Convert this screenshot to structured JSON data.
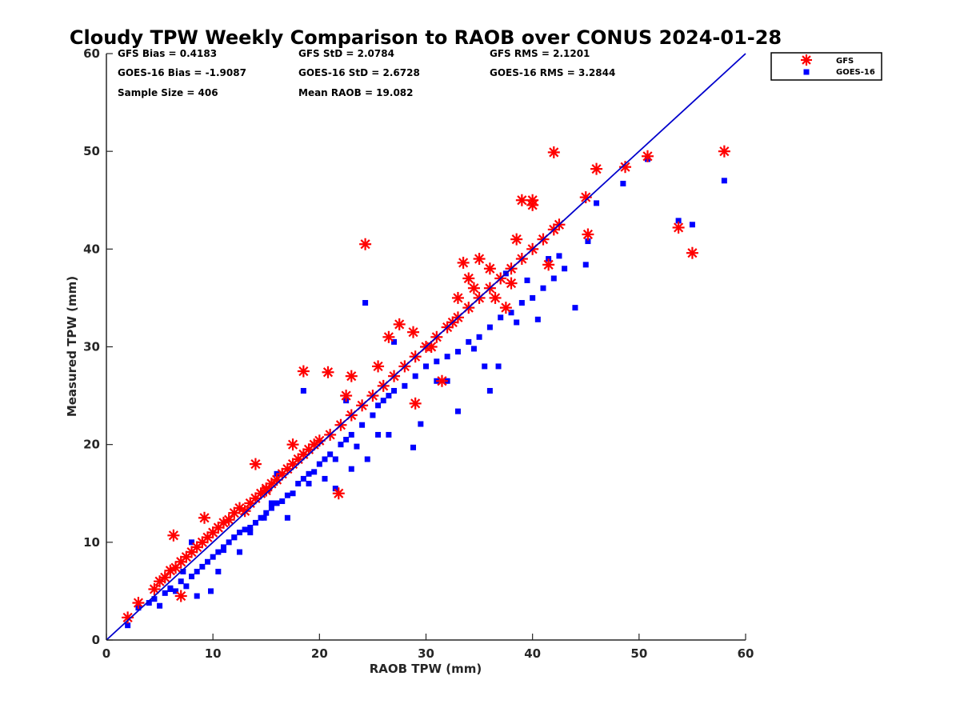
{
  "chart_data": {
    "type": "scatter",
    "title": "Cloudy TPW Weekly Comparison to RAOB over CONUS 2024-01-28",
    "xlabel": "RAOB TPW (mm)",
    "ylabel": "Measured TPW (mm)",
    "xlim": [
      0,
      60
    ],
    "ylim": [
      0,
      60
    ],
    "xticks": [
      0,
      10,
      20,
      30,
      40,
      50,
      60
    ],
    "yticks": [
      0,
      10,
      20,
      30,
      40,
      50,
      60
    ],
    "grid": false,
    "legend_position": "top-right (outside plot)",
    "reference_line": {
      "type": "one-to-one",
      "x": [
        0,
        60
      ],
      "y": [
        0,
        60
      ],
      "color": "#0000cc"
    },
    "stats": {
      "row1": [
        "GFS Bias = 0.4183",
        "GFS StD = 2.0784",
        "GFS RMS = 2.1201"
      ],
      "row2": [
        "GOES-16 Bias = -1.9087",
        "GOES-16 StD = 2.6728",
        "GOES-16 RMS = 3.2844"
      ],
      "row3": [
        "Sample Size = 406",
        "Mean RAOB = 19.082"
      ]
    },
    "series": [
      {
        "name": "GFS",
        "marker": "asterisk",
        "color": "#ff0000",
        "x": [
          2,
          3,
          4.5,
          5,
          5.5,
          6,
          6.5,
          7,
          7.5,
          8,
          8.5,
          9,
          9.5,
          10,
          10.5,
          11,
          11.5,
          12,
          12.5,
          13,
          13.5,
          14,
          14.5,
          15,
          15.5,
          16,
          16.5,
          17,
          17.5,
          18,
          18.5,
          19,
          19.5,
          20,
          21,
          22,
          23,
          24,
          25,
          26,
          27,
          28,
          29,
          30,
          31,
          32,
          33,
          34,
          35,
          36,
          37,
          38,
          39,
          40,
          41,
          42,
          45,
          46,
          48.7,
          50.8,
          6.3,
          9.2,
          14,
          18.5,
          20.8,
          21.8,
          24.3,
          23,
          25.5,
          27.5,
          28.8,
          32.5,
          33.5,
          34,
          35,
          36,
          38.5,
          39,
          40,
          42,
          45.2,
          53.7,
          55,
          58,
          40,
          41.5,
          42.5,
          38,
          22.5,
          7,
          15,
          26.5,
          30.5,
          33,
          34.5,
          36.5,
          37.5,
          29,
          31.5,
          17.5
        ],
        "y": [
          2.3,
          3.8,
          5.2,
          6,
          6.4,
          7.1,
          7.4,
          8,
          8.5,
          9,
          9.5,
          10,
          10.5,
          11,
          11.5,
          12,
          12.3,
          13,
          13.5,
          13.2,
          14,
          14.5,
          15,
          15.3,
          16,
          16.4,
          17,
          17.5,
          18,
          18.5,
          19,
          19.5,
          20,
          20.4,
          21,
          22,
          23,
          24,
          25,
          26,
          27,
          28,
          29,
          30,
          31,
          32,
          33,
          34,
          35,
          36,
          37,
          38,
          39,
          40,
          41,
          42,
          45.3,
          48.2,
          48.4,
          49.5,
          10.7,
          12.5,
          18,
          27.5,
          27.4,
          15,
          40.5,
          27,
          28,
          32.3,
          31.5,
          32.5,
          38.6,
          37,
          39,
          38,
          41,
          45,
          44.5,
          49.9,
          41.5,
          42.2,
          39.6,
          50,
          45,
          38.4,
          42.5,
          36.5,
          25,
          4.5,
          15.5,
          31,
          30,
          35,
          36,
          35,
          34,
          24.2,
          26.5,
          20
        ]
      },
      {
        "name": "GOES-16",
        "marker": "square",
        "color": "#0000ff",
        "x": [
          2,
          3,
          4,
          4.5,
          5,
          5.5,
          6,
          6.5,
          7,
          7.5,
          8,
          8.5,
          9,
          9.5,
          10,
          10.5,
          11,
          11.5,
          12,
          12.5,
          13,
          13.5,
          14,
          14.5,
          15,
          15.5,
          16,
          16.5,
          17,
          17.5,
          18,
          18.5,
          19,
          19.5,
          20,
          20.5,
          21,
          21.5,
          22,
          22.5,
          23,
          23.5,
          24,
          24.5,
          25,
          25.5,
          26,
          26.5,
          27,
          28,
          29,
          30,
          31,
          32,
          33,
          34,
          35,
          36,
          37,
          38,
          39,
          40,
          41,
          42,
          43,
          45,
          46,
          48.5,
          50.8,
          53.7,
          55,
          58,
          24.3,
          18.5,
          33,
          28.8,
          36,
          32,
          27,
          29.5,
          35.5,
          38.5,
          40.5,
          44,
          45.2,
          20.5,
          21.5,
          25.5,
          16,
          12,
          13.5,
          9.8,
          8.5,
          7.2,
          11,
          14.8,
          19,
          23,
          31,
          34.5,
          36.8,
          26.5,
          37.5,
          39.5,
          41.5,
          42.5,
          22.5,
          17,
          15.5,
          10.5,
          6,
          8,
          12.5
        ],
        "y": [
          1.5,
          3.3,
          3.8,
          4.2,
          3.5,
          4.8,
          5.3,
          5,
          6,
          5.5,
          6.5,
          7,
          7.5,
          8,
          8.5,
          9,
          9.2,
          10,
          10.5,
          11,
          11.3,
          11,
          12,
          12.5,
          13,
          13.5,
          14,
          14.2,
          14.8,
          15,
          16,
          16.5,
          17,
          17.2,
          18,
          16.5,
          19,
          18.5,
          20,
          20.5,
          21,
          19.8,
          22,
          18.5,
          23,
          24,
          24.5,
          25,
          25.5,
          26,
          27,
          28,
          28.5,
          29,
          29.5,
          30.5,
          31,
          32,
          33,
          33.5,
          34.5,
          35,
          36,
          37,
          38,
          38.4,
          44.7,
          46.7,
          49.2,
          42.9,
          42.5,
          47,
          34.5,
          25.5,
          23.4,
          19.7,
          25.5,
          26.5,
          30.5,
          22.1,
          28,
          32.5,
          32.8,
          34,
          40.8,
          18.5,
          15.5,
          21,
          17,
          10.5,
          11.5,
          5,
          4.5,
          7,
          9.5,
          12.5,
          16,
          17.5,
          26.5,
          29.8,
          28,
          21,
          37.5,
          36.8,
          39,
          39.3,
          24.5,
          12.5,
          14,
          7,
          5.2,
          10,
          9
        ]
      }
    ]
  }
}
